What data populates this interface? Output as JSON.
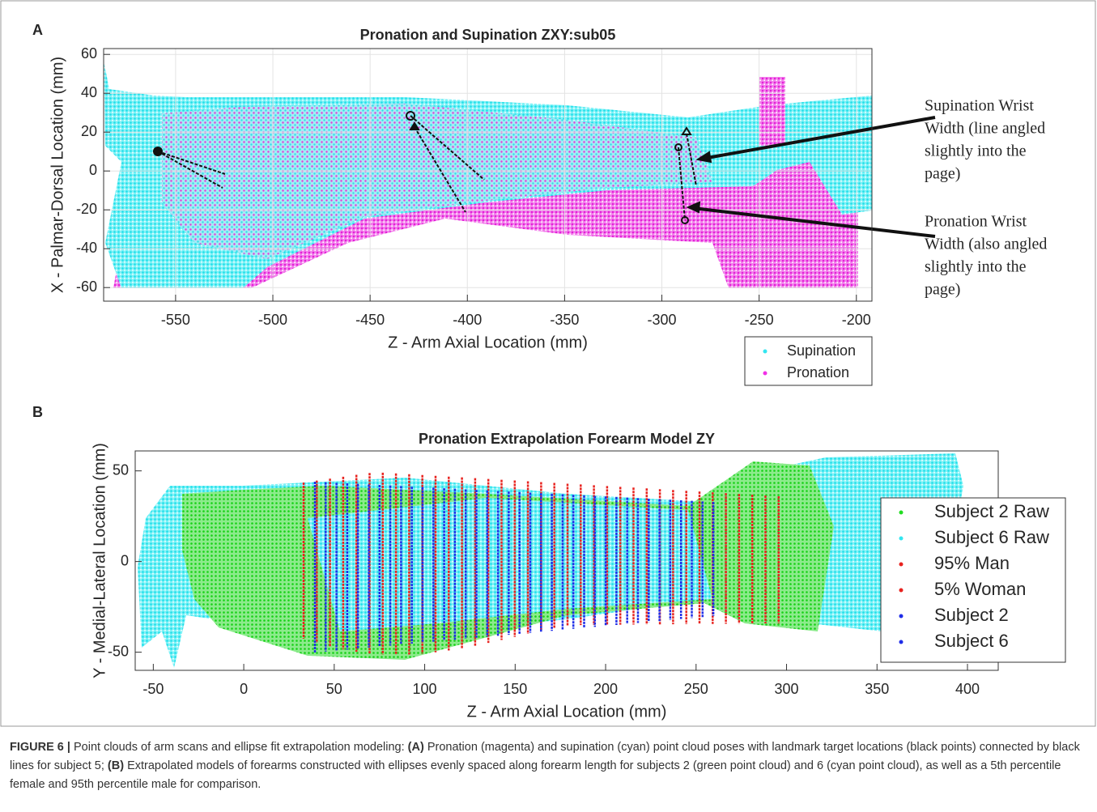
{
  "chart_data": [
    {
      "type": "scatter",
      "panel": "A",
      "title": "Pronation and Supination ZXY:sub05",
      "xlabel": "Z - Arm Axial Location (mm)",
      "ylabel": "X - Palmar-Dorsal Location (mm)",
      "xlim": [
        -587,
        -192
      ],
      "ylim": [
        -67,
        63
      ],
      "xticks": [
        -550,
        -500,
        -450,
        -400,
        -350,
        -300,
        -250,
        -200
      ],
      "yticks": [
        -60,
        -40,
        -20,
        0,
        20,
        40,
        60
      ],
      "grid": true,
      "series": [
        {
          "name": "Supination",
          "color": "#33e6f0"
        },
        {
          "name": "Pronation",
          "color": "#f030e6"
        }
      ],
      "annotations": [
        {
          "lines": [
            "Supination Wrist",
            "Width (line angled",
            "slightly into the",
            "page)"
          ]
        },
        {
          "lines": [
            "Pronation Wrist",
            "Width (also angled",
            "slightly into the",
            "page)"
          ]
        }
      ]
    },
    {
      "type": "scatter",
      "panel": "B",
      "title": "Pronation Extrapolation Forearm Model ZY",
      "xlabel": "Z - Arm Axial Location (mm)",
      "ylabel": "Y - Medial-Lateral Location (mm)",
      "xlim": [
        -60,
        417
      ],
      "ylim": [
        -60,
        61
      ],
      "xticks": [
        -50,
        0,
        50,
        100,
        150,
        200,
        250,
        300,
        350,
        400
      ],
      "yticks": [
        -50,
        0,
        50
      ],
      "grid": false,
      "series": [
        {
          "name": "Subject 2 Raw",
          "color": "#22dd22"
        },
        {
          "name": "Subject 6 Raw",
          "color": "#33e6f0"
        },
        {
          "name": "95% Man",
          "color": "#e8231f"
        },
        {
          "name": "5% Woman",
          "color": "#e8231f"
        },
        {
          "name": "Subject 2",
          "color": "#1f2de8"
        },
        {
          "name": "Subject 6",
          "color": "#1f2de8"
        }
      ]
    }
  ],
  "caption": [
    "FIGURE 6 |",
    " Point clouds of arm scans and ellipse fit extrapolation modeling: ",
    "(A)",
    " Pronation (magenta) and supination (cyan) point cloud poses with landmark target locations (black points) connected by black lines for subject 5; ",
    "(B)",
    " Extrapolated models of forearms constructed with ellipses evenly spaced along forearm length for subjects 2 (green point cloud) and 6 (cyan point cloud), as well as a 5th percentile female and 95th percentile male for comparison."
  ]
}
